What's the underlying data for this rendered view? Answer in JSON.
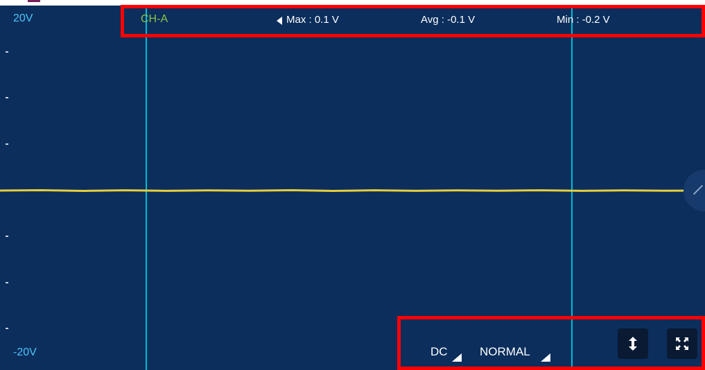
{
  "scale": {
    "top_label": "20V",
    "bottom_label": "-20V"
  },
  "channel": {
    "name": "CH-A"
  },
  "stats": {
    "max": "Max : 0.1 V",
    "avg": "Avg : -0.1 V",
    "min": "Min : -0.2 V",
    "edge_char": "I"
  },
  "controls": {
    "coupling": "DC",
    "mode": "NORMAL"
  },
  "colors": {
    "background": "#0b2e5c",
    "trace": "#e6cf3a",
    "cursor": "#00bcd4",
    "highlight": "#ff0000",
    "scale_label": "#4fc3f7",
    "channel_label": "#8bc34a"
  },
  "icons": {
    "vertical_adjust": "vertical-arrows-icon",
    "fullscreen": "fullscreen-icon",
    "edge_handle": "slide-handle-icon"
  }
}
